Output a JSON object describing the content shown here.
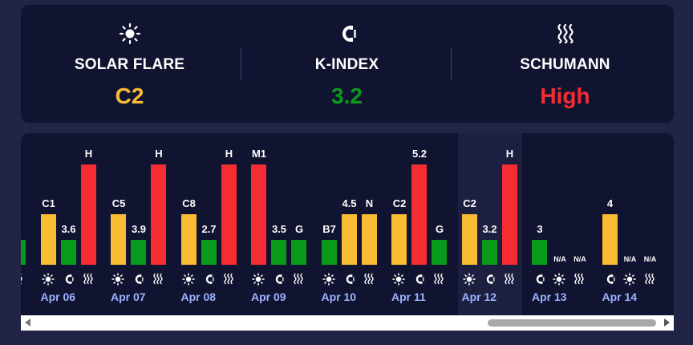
{
  "metrics": [
    {
      "label": "SOLAR FLARE",
      "value": "C2",
      "color": "#f9bd33",
      "icon": "sun-icon"
    },
    {
      "label": "K-INDEX",
      "value": "3.2",
      "color": "#089a1a",
      "icon": "magnet-icon"
    },
    {
      "label": "SCHUMANN",
      "value": "High",
      "color": "#f52c32",
      "icon": "waves-icon"
    }
  ],
  "colors": {
    "solar": "#f9bd33",
    "kindex": "#089a1a",
    "schumann": "#f52c32",
    "date": "#9cb3ff"
  },
  "days": [
    {
      "date": "",
      "bars": [
        null,
        null,
        {
          "kind": "kindex",
          "label": "",
          "level": 0.25
        }
      ]
    },
    {
      "date": "Apr 06",
      "bars": [
        {
          "kind": "solar",
          "label": "C1",
          "level": 0.5
        },
        {
          "kind": "kindex",
          "label": "3.6",
          "level": 0.25
        },
        {
          "kind": "schumann",
          "label": "H",
          "level": 1.0
        }
      ]
    },
    {
      "date": "Apr 07",
      "bars": [
        {
          "kind": "solar",
          "label": "C5",
          "level": 0.5
        },
        {
          "kind": "kindex",
          "label": "3.9",
          "level": 0.25
        },
        {
          "kind": "schumann",
          "label": "H",
          "level": 1.0
        }
      ]
    },
    {
      "date": "Apr 08",
      "bars": [
        {
          "kind": "solar",
          "label": "C8",
          "level": 0.5
        },
        {
          "kind": "kindex",
          "label": "2.7",
          "level": 0.25
        },
        {
          "kind": "schumann",
          "label": "H",
          "level": 1.0
        }
      ]
    },
    {
      "date": "Apr 09",
      "bars": [
        {
          "kind": "solar_red",
          "label": "M1",
          "level": 1.0
        },
        {
          "kind": "kindex",
          "label": "3.5",
          "level": 0.25
        },
        {
          "kind": "kindex",
          "label": "G",
          "level": 0.25
        }
      ]
    },
    {
      "date": "Apr 10",
      "bars": [
        {
          "kind": "kindex",
          "label": "B7",
          "level": 0.25
        },
        {
          "kind": "solar",
          "label": "4.5",
          "level": 0.5
        },
        {
          "kind": "solar",
          "label": "N",
          "level": 0.5
        }
      ]
    },
    {
      "date": "Apr 11",
      "bars": [
        {
          "kind": "solar",
          "label": "C2",
          "level": 0.5
        },
        {
          "kind": "schumann",
          "label": "5.2",
          "level": 1.0
        },
        {
          "kind": "kindex",
          "label": "G",
          "level": 0.25
        }
      ]
    },
    {
      "date": "Apr 12",
      "bars": [
        {
          "kind": "solar",
          "label": "C2",
          "level": 0.5
        },
        {
          "kind": "kindex",
          "label": "3.2",
          "level": 0.25
        },
        {
          "kind": "schumann",
          "label": "H",
          "level": 1.0
        }
      ]
    },
    {
      "date": "Apr 13",
      "bars": [
        {
          "kind": "kindex",
          "label": "3",
          "level": 0.25
        },
        {
          "kind": "na",
          "label": "N/A",
          "level": 0
        },
        {
          "kind": "na",
          "label": "N/A",
          "level": 0
        }
      ]
    },
    {
      "date": "Apr 14",
      "bars": [
        {
          "kind": "solar",
          "label": "4",
          "level": 0.5
        },
        {
          "kind": "na",
          "label": "N/A",
          "level": 0
        },
        {
          "kind": "na",
          "label": "N/A",
          "level": 0
        }
      ]
    }
  ],
  "glyph_order": {
    "default": [
      "sun-icon",
      "magnet-icon",
      "waves-icon"
    ],
    "Apr 13": [
      "magnet-icon",
      "sun-icon",
      "waves-icon"
    ],
    "Apr 14": [
      "magnet-icon",
      "sun-icon",
      "waves-icon"
    ]
  }
}
